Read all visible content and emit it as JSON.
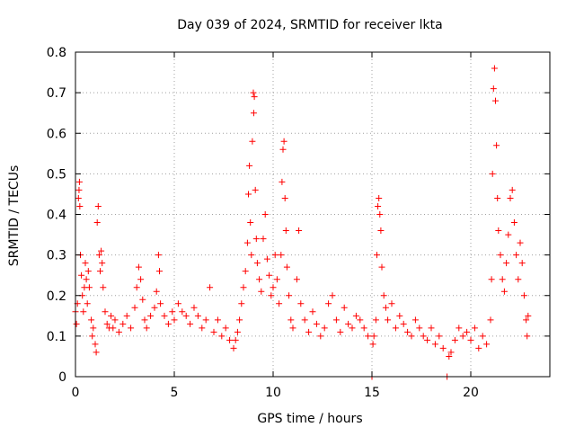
{
  "chart_data": {
    "type": "scatter",
    "title": "Day 039 of 2024, SRMTID for receiver lkta",
    "xlabel": "GPS time / hours",
    "ylabel": "SRMTID / TECUs",
    "xlim": [
      0,
      24
    ],
    "ylim": [
      0,
      0.8
    ],
    "grid": true,
    "marker": "+",
    "color": "#ff0000",
    "x_ticks": [
      0,
      5,
      10,
      15,
      20
    ],
    "x_tick_labels": [
      "0",
      "5",
      "10",
      "15",
      "20"
    ],
    "y_ticks": [
      0,
      0.1,
      0.2,
      0.3,
      0.4,
      0.5,
      0.6,
      0.7,
      0.8
    ],
    "y_tick_labels": [
      "0",
      "0.1",
      "0.2",
      "0.3",
      "0.4",
      "0.5",
      "0.6",
      "0.7",
      "0.8"
    ],
    "series": [
      {
        "name": "SRMTID",
        "points": [
          [
            0.0,
            0.16
          ],
          [
            0.05,
            0.13
          ],
          [
            0.1,
            0.18
          ],
          [
            0.15,
            0.44
          ],
          [
            0.18,
            0.46
          ],
          [
            0.2,
            0.48
          ],
          [
            0.22,
            0.42
          ],
          [
            0.25,
            0.3
          ],
          [
            0.3,
            0.25
          ],
          [
            0.35,
            0.2
          ],
          [
            0.4,
            0.16
          ],
          [
            0.45,
            0.22
          ],
          [
            0.5,
            0.28
          ],
          [
            0.55,
            0.24
          ],
          [
            0.6,
            0.18
          ],
          [
            0.65,
            0.26
          ],
          [
            0.7,
            0.22
          ],
          [
            0.8,
            0.14
          ],
          [
            0.85,
            0.1
          ],
          [
            0.9,
            0.12
          ],
          [
            1.0,
            0.08
          ],
          [
            1.05,
            0.06
          ],
          [
            1.1,
            0.38
          ],
          [
            1.15,
            0.42
          ],
          [
            1.2,
            0.3
          ],
          [
            1.25,
            0.26
          ],
          [
            1.3,
            0.31
          ],
          [
            1.35,
            0.28
          ],
          [
            1.4,
            0.22
          ],
          [
            1.5,
            0.16
          ],
          [
            1.6,
            0.13
          ],
          [
            1.7,
            0.12
          ],
          [
            1.8,
            0.15
          ],
          [
            1.9,
            0.12
          ],
          [
            2.0,
            0.14
          ],
          [
            2.2,
            0.11
          ],
          [
            2.4,
            0.13
          ],
          [
            2.6,
            0.15
          ],
          [
            2.8,
            0.12
          ],
          [
            3.0,
            0.17
          ],
          [
            3.1,
            0.22
          ],
          [
            3.2,
            0.27
          ],
          [
            3.3,
            0.24
          ],
          [
            3.4,
            0.19
          ],
          [
            3.5,
            0.14
          ],
          [
            3.6,
            0.12
          ],
          [
            3.8,
            0.15
          ],
          [
            4.0,
            0.17
          ],
          [
            4.1,
            0.21
          ],
          [
            4.2,
            0.3
          ],
          [
            4.25,
            0.26
          ],
          [
            4.3,
            0.18
          ],
          [
            4.5,
            0.15
          ],
          [
            4.7,
            0.13
          ],
          [
            4.9,
            0.16
          ],
          [
            5.0,
            0.14
          ],
          [
            5.2,
            0.18
          ],
          [
            5.4,
            0.16
          ],
          [
            5.6,
            0.15
          ],
          [
            5.8,
            0.13
          ],
          [
            6.0,
            0.17
          ],
          [
            6.2,
            0.15
          ],
          [
            6.4,
            0.12
          ],
          [
            6.6,
            0.14
          ],
          [
            6.8,
            0.22
          ],
          [
            7.0,
            0.11
          ],
          [
            7.2,
            0.14
          ],
          [
            7.4,
            0.1
          ],
          [
            7.6,
            0.12
          ],
          [
            7.8,
            0.09
          ],
          [
            8.0,
            0.07
          ],
          [
            8.1,
            0.09
          ],
          [
            8.2,
            0.11
          ],
          [
            8.3,
            0.14
          ],
          [
            8.4,
            0.18
          ],
          [
            8.5,
            0.22
          ],
          [
            8.6,
            0.26
          ],
          [
            8.7,
            0.33
          ],
          [
            8.75,
            0.45
          ],
          [
            8.8,
            0.52
          ],
          [
            8.85,
            0.38
          ],
          [
            8.9,
            0.3
          ],
          [
            8.95,
            0.58
          ],
          [
            9.0,
            0.7
          ],
          [
            9.02,
            0.65
          ],
          [
            9.05,
            0.69
          ],
          [
            9.1,
            0.46
          ],
          [
            9.15,
            0.34
          ],
          [
            9.2,
            0.28
          ],
          [
            9.3,
            0.24
          ],
          [
            9.4,
            0.21
          ],
          [
            9.5,
            0.34
          ],
          [
            9.6,
            0.4
          ],
          [
            9.7,
            0.29
          ],
          [
            9.8,
            0.25
          ],
          [
            9.9,
            0.2
          ],
          [
            10.0,
            0.22
          ],
          [
            10.1,
            0.3
          ],
          [
            10.2,
            0.24
          ],
          [
            10.3,
            0.18
          ],
          [
            10.4,
            0.3
          ],
          [
            10.45,
            0.48
          ],
          [
            10.5,
            0.56
          ],
          [
            10.55,
            0.58
          ],
          [
            10.6,
            0.44
          ],
          [
            10.65,
            0.36
          ],
          [
            10.7,
            0.27
          ],
          [
            10.8,
            0.2
          ],
          [
            10.9,
            0.14
          ],
          [
            11.0,
            0.12
          ],
          [
            11.2,
            0.24
          ],
          [
            11.3,
            0.36
          ],
          [
            11.4,
            0.18
          ],
          [
            11.6,
            0.14
          ],
          [
            11.8,
            0.11
          ],
          [
            12.0,
            0.16
          ],
          [
            12.2,
            0.13
          ],
          [
            12.4,
            0.1
          ],
          [
            12.6,
            0.12
          ],
          [
            12.8,
            0.18
          ],
          [
            13.0,
            0.2
          ],
          [
            13.2,
            0.14
          ],
          [
            13.4,
            0.11
          ],
          [
            13.6,
            0.17
          ],
          [
            13.8,
            0.13
          ],
          [
            14.0,
            0.12
          ],
          [
            14.2,
            0.15
          ],
          [
            14.4,
            0.14
          ],
          [
            14.6,
            0.12
          ],
          [
            14.8,
            0.1
          ],
          [
            15.0,
            0.0
          ],
          [
            15.05,
            0.08
          ],
          [
            15.1,
            0.1
          ],
          [
            15.2,
            0.14
          ],
          [
            15.25,
            0.3
          ],
          [
            15.3,
            0.42
          ],
          [
            15.35,
            0.44
          ],
          [
            15.4,
            0.4
          ],
          [
            15.45,
            0.36
          ],
          [
            15.5,
            0.27
          ],
          [
            15.6,
            0.2
          ],
          [
            15.7,
            0.17
          ],
          [
            15.8,
            0.14
          ],
          [
            16.0,
            0.18
          ],
          [
            16.2,
            0.12
          ],
          [
            16.4,
            0.15
          ],
          [
            16.6,
            0.13
          ],
          [
            16.8,
            0.11
          ],
          [
            17.0,
            0.1
          ],
          [
            17.2,
            0.14
          ],
          [
            17.4,
            0.12
          ],
          [
            17.6,
            0.1
          ],
          [
            17.8,
            0.09
          ],
          [
            18.0,
            0.12
          ],
          [
            18.2,
            0.08
          ],
          [
            18.4,
            0.1
          ],
          [
            18.6,
            0.07
          ],
          [
            18.8,
            0.0
          ],
          [
            18.9,
            0.05
          ],
          [
            19.0,
            0.06
          ],
          [
            19.2,
            0.09
          ],
          [
            19.4,
            0.12
          ],
          [
            19.6,
            0.1
          ],
          [
            19.8,
            0.11
          ],
          [
            20.0,
            0.09
          ],
          [
            20.2,
            0.12
          ],
          [
            20.4,
            0.07
          ],
          [
            20.6,
            0.1
          ],
          [
            20.8,
            0.08
          ],
          [
            21.0,
            0.14
          ],
          [
            21.05,
            0.24
          ],
          [
            21.1,
            0.5
          ],
          [
            21.15,
            0.71
          ],
          [
            21.2,
            0.76
          ],
          [
            21.25,
            0.68
          ],
          [
            21.3,
            0.57
          ],
          [
            21.35,
            0.44
          ],
          [
            21.4,
            0.36
          ],
          [
            21.5,
            0.3
          ],
          [
            21.6,
            0.24
          ],
          [
            21.7,
            0.21
          ],
          [
            21.8,
            0.28
          ],
          [
            21.9,
            0.35
          ],
          [
            22.0,
            0.44
          ],
          [
            22.1,
            0.46
          ],
          [
            22.2,
            0.38
          ],
          [
            22.3,
            0.3
          ],
          [
            22.4,
            0.24
          ],
          [
            22.5,
            0.33
          ],
          [
            22.6,
            0.28
          ],
          [
            22.7,
            0.2
          ],
          [
            22.8,
            0.14
          ],
          [
            22.85,
            0.1
          ],
          [
            22.9,
            0.15
          ]
        ]
      }
    ]
  }
}
